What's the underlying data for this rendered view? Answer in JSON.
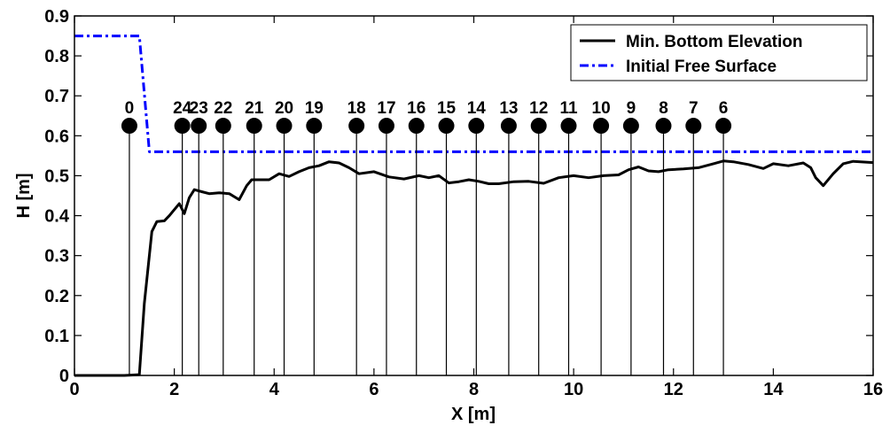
{
  "chart_data": {
    "type": "line",
    "xlabel": "X [m]",
    "ylabel": "H [m]",
    "xlim": [
      0,
      16
    ],
    "ylim": [
      0,
      0.9
    ],
    "xticks": [
      "0",
      "2",
      "4",
      "6",
      "8",
      "10",
      "12",
      "14",
      "16"
    ],
    "yticks": [
      "0",
      "0.1",
      "0.2",
      "0.3",
      "0.4",
      "0.5",
      "0.6",
      "0.7",
      "0.8",
      "0.9"
    ],
    "grid": false,
    "legend_position": "top-right",
    "series": [
      {
        "name": "Min. Bottom Elevation",
        "style": "solid",
        "color": "#000000",
        "x": [
          0,
          0.5,
          1.0,
          1.3,
          1.4,
          1.55,
          1.65,
          1.8,
          1.9,
          2.0,
          2.1,
          2.2,
          2.3,
          2.4,
          2.55,
          2.7,
          2.9,
          3.1,
          3.3,
          3.45,
          3.55,
          3.7,
          3.9,
          4.1,
          4.3,
          4.5,
          4.7,
          4.9,
          5.1,
          5.3,
          5.5,
          5.7,
          6.0,
          6.3,
          6.6,
          6.9,
          7.1,
          7.3,
          7.5,
          7.7,
          7.9,
          8.1,
          8.3,
          8.5,
          8.8,
          9.1,
          9.4,
          9.7,
          10.0,
          10.3,
          10.6,
          10.9,
          11.1,
          11.3,
          11.5,
          11.7,
          11.9,
          12.2,
          12.5,
          12.8,
          13.0,
          13.2,
          13.5,
          13.8,
          14.0,
          14.3,
          14.6,
          14.75,
          14.85,
          15.0,
          15.2,
          15.4,
          15.6,
          16.0
        ],
        "y": [
          0,
          0,
          0,
          0.002,
          0.18,
          0.36,
          0.385,
          0.387,
          0.4,
          0.415,
          0.43,
          0.405,
          0.445,
          0.465,
          0.46,
          0.455,
          0.457,
          0.455,
          0.44,
          0.475,
          0.49,
          0.49,
          0.49,
          0.505,
          0.498,
          0.51,
          0.52,
          0.525,
          0.535,
          0.532,
          0.52,
          0.505,
          0.51,
          0.497,
          0.492,
          0.5,
          0.495,
          0.5,
          0.482,
          0.485,
          0.49,
          0.486,
          0.48,
          0.48,
          0.485,
          0.486,
          0.481,
          0.495,
          0.5,
          0.495,
          0.5,
          0.502,
          0.515,
          0.522,
          0.512,
          0.51,
          0.515,
          0.517,
          0.52,
          0.53,
          0.537,
          0.535,
          0.528,
          0.518,
          0.53,
          0.525,
          0.532,
          0.52,
          0.495,
          0.475,
          0.505,
          0.53,
          0.536,
          0.533
        ]
      },
      {
        "name": "Initial Free Surface",
        "style": "dashdot",
        "color": "#0000ff",
        "x": [
          0,
          1.3,
          1.5,
          16
        ],
        "y": [
          0.85,
          0.85,
          0.56,
          0.56
        ]
      }
    ],
    "gauges": {
      "marker_y": 0.625,
      "labels": [
        "0",
        "24",
        "23",
        "22",
        "21",
        "20",
        "19",
        "18",
        "17",
        "16",
        "15",
        "14",
        "13",
        "12",
        "11",
        "10",
        "9",
        "8",
        "7",
        "6"
      ],
      "x": [
        1.1,
        2.16,
        2.49,
        2.98,
        3.6,
        4.2,
        4.8,
        5.65,
        6.25,
        6.85,
        7.45,
        8.05,
        8.7,
        9.3,
        9.9,
        10.55,
        11.15,
        11.8,
        12.4,
        13.0
      ]
    }
  }
}
